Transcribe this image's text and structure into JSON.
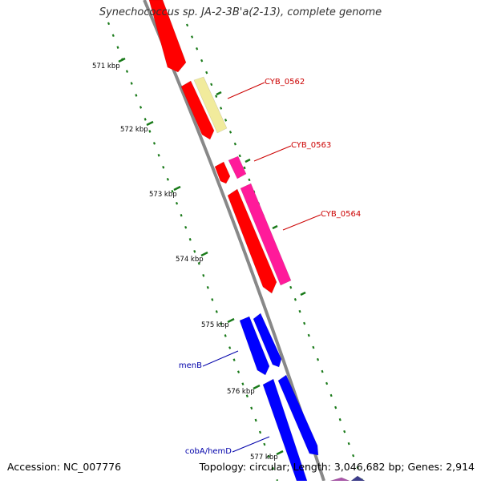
{
  "title": "Synechococcus sp. JA-2-3B'a(2-13), complete genome",
  "accession": "Accession: NC_007776",
  "summary": "Topology: circular; Length: 3,046,682 bp; Genes: 2,914",
  "ticks": [
    {
      "label": "571 kbp"
    },
    {
      "label": "572 kbp"
    },
    {
      "label": "573 kbp"
    },
    {
      "label": "574 kbp"
    },
    {
      "label": "575 kbp"
    },
    {
      "label": "576 kbp"
    },
    {
      "label": "577 kbp"
    }
  ],
  "genes": [
    {
      "label": "CYB_0562",
      "color": "#cc0000"
    },
    {
      "label": "CYB_0563",
      "color": "#cc0000"
    },
    {
      "label": "CYB_0564",
      "color": "#cc0000"
    },
    {
      "label": "menB",
      "color": "#0000aa"
    },
    {
      "label": "cobA/hemD",
      "color": "#0000aa"
    }
  ],
  "colors": {
    "cds": "#ff0000",
    "rna": "#ff1a9a",
    "other": "#f1eb9c",
    "blue": "#0000ff",
    "backbone": "#888888",
    "tick": "#1a7a1a"
  }
}
